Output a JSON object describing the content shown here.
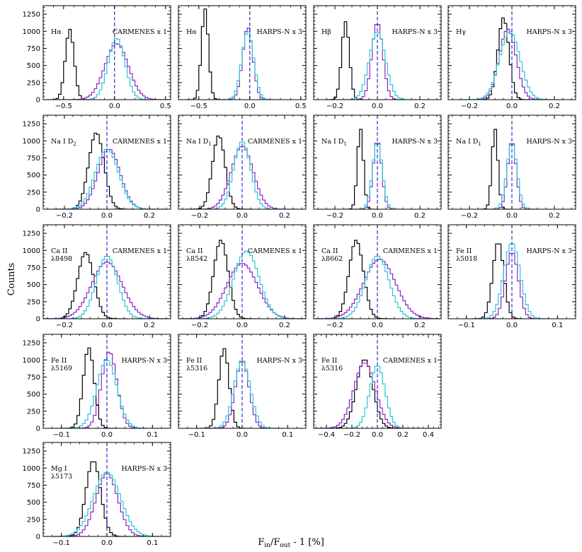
{
  "figure": {
    "ylabel": "Counts",
    "xlabel_main": "F",
    "xlabel_sub_in": "in",
    "xlabel_slash": "/F",
    "xlabel_sub_out": "out",
    "xlabel_tail": " - 1 [%]"
  },
  "colors": {
    "black": "#000000",
    "purple": "#8e24c8",
    "cyan": "#29c8d0",
    "center": "#0000cc"
  },
  "chart_data": [
    {
      "type": "histogram",
      "label": "Hα",
      "instrument": "CARMENES x 1",
      "xlim": [
        -0.7,
        0.55
      ],
      "ylim": [
        0,
        1375
      ],
      "xticks": [
        -0.5,
        0,
        0.5
      ],
      "xticklabels": [
        "−0.5",
        "0.0",
        "0.5"
      ],
      "yticks": [
        0,
        250,
        500,
        750,
        1000,
        1250
      ],
      "bin_width": 0.025,
      "series": [
        {
          "color": "black",
          "mean": -0.44,
          "sigma": 0.043,
          "peak": 1030
        },
        {
          "color": "purple",
          "mean": 0.02,
          "sigma": 0.115,
          "peak": 820
        },
        {
          "color": "cyan",
          "mean": 0.02,
          "sigma": 0.082,
          "peak": 900
        }
      ],
      "center_line": 0.0
    },
    {
      "type": "histogram",
      "label": "Hα",
      "instrument": "HARPS-N x 3",
      "xlim": [
        -0.7,
        0.55
      ],
      "ylim": [
        0,
        1375
      ],
      "xticks": [
        -0.5,
        0,
        0.5
      ],
      "xticklabels": [
        "−0.5",
        "0.0",
        "0.5"
      ],
      "yticks": [
        0,
        250,
        500,
        750,
        1000,
        1250
      ],
      "bin_width": 0.025,
      "series": [
        {
          "color": "black",
          "mean": -0.44,
          "sigma": 0.034,
          "peak": 1330
        },
        {
          "color": "purple",
          "mean": -0.02,
          "sigma": 0.05,
          "peak": 1060
        },
        {
          "color": "cyan",
          "mean": -0.02,
          "sigma": 0.058,
          "peak": 1000
        }
      ],
      "center_line": 0.0
    },
    {
      "type": "histogram",
      "label": "Hβ",
      "instrument": "HARPS-N x 3",
      "xlim": [
        -0.3,
        0.3
      ],
      "ylim": [
        0,
        1375
      ],
      "xticks": [
        -0.2,
        0,
        0.2
      ],
      "xticklabels": [
        "−0.2",
        "0.0",
        "0.2"
      ],
      "yticks": [
        0,
        250,
        500,
        750,
        1000,
        1250
      ],
      "bin_width": 0.012,
      "series": [
        {
          "color": "black",
          "mean": -0.15,
          "sigma": 0.018,
          "peak": 1140
        },
        {
          "color": "purple",
          "mean": 0.0,
          "sigma": 0.026,
          "peak": 1130
        },
        {
          "color": "cyan",
          "mean": 0.0,
          "sigma": 0.038,
          "peak": 990
        }
      ],
      "center_line": 0.0
    },
    {
      "type": "histogram",
      "label": "Hγ",
      "instrument": "HARPS-N x 3",
      "xlim": [
        -0.3,
        0.3
      ],
      "ylim": [
        0,
        1375
      ],
      "xticks": [
        -0.2,
        0,
        0.2
      ],
      "xticklabels": [
        "−0.2",
        "0.0",
        "0.2"
      ],
      "yticks": [
        0,
        250,
        500,
        750,
        1000,
        1250
      ],
      "bin_width": 0.012,
      "series": [
        {
          "color": "black",
          "mean": -0.04,
          "sigma": 0.026,
          "peak": 1200
        },
        {
          "color": "purple",
          "mean": -0.02,
          "sigma": 0.04,
          "peak": 1030
        },
        {
          "color": "cyan",
          "mean": -0.01,
          "sigma": 0.048,
          "peak": 1000
        }
      ],
      "center_line": 0.0
    },
    {
      "type": "histogram",
      "label": "Na I D",
      "label_sub": "2",
      "instrument": "CARMENES x 1",
      "xlim": [
        -0.3,
        0.3
      ],
      "ylim": [
        0,
        1375
      ],
      "xticks": [
        -0.2,
        0,
        0.2
      ],
      "xticklabels": [
        "−0.2",
        "0.0",
        "0.2"
      ],
      "yticks": [
        0,
        250,
        500,
        750,
        1000,
        1250
      ],
      "bin_width": 0.012,
      "series": [
        {
          "color": "black",
          "mean": -0.05,
          "sigma": 0.036,
          "peak": 1120
        },
        {
          "color": "purple",
          "mean": 0.01,
          "sigma": 0.052,
          "peak": 880
        },
        {
          "color": "cyan",
          "mean": 0.0,
          "sigma": 0.055,
          "peak": 880
        }
      ],
      "center_line": 0.0
    },
    {
      "type": "histogram",
      "label": "Na I D",
      "label_sub": "1",
      "instrument": "CARMENES x 1",
      "xlim": [
        -0.3,
        0.3
      ],
      "ylim": [
        0,
        1375
      ],
      "xticks": [
        -0.2,
        0,
        0.2
      ],
      "xticklabels": [
        "−0.2",
        "0.0",
        "0.2"
      ],
      "yticks": [
        0,
        250,
        500,
        750,
        1000,
        1250
      ],
      "bin_width": 0.012,
      "series": [
        {
          "color": "black",
          "mean": -0.11,
          "sigma": 0.03,
          "peak": 1080
        },
        {
          "color": "purple",
          "mean": 0.0,
          "sigma": 0.052,
          "peak": 920
        },
        {
          "color": "cyan",
          "mean": 0.0,
          "sigma": 0.04,
          "peak": 990
        }
      ],
      "center_line": 0.0
    },
    {
      "type": "histogram",
      "label": "Na I D",
      "label_sub": "1",
      "instrument": "HARPS-N x 3",
      "xlim": [
        -0.3,
        0.3
      ],
      "ylim": [
        0,
        1375
      ],
      "xticks": [
        -0.2,
        0,
        0.2
      ],
      "xticklabels": [
        "−0.2",
        "0.0",
        "0.2"
      ],
      "yticks": [
        0,
        250,
        500,
        750,
        1000,
        1250
      ],
      "bin_width": 0.012,
      "series": [
        {
          "color": "black",
          "mean": -0.08,
          "sigma": 0.014,
          "peak": 1180
        },
        {
          "color": "purple",
          "mean": 0.0,
          "sigma": 0.02,
          "peak": 1010
        },
        {
          "color": "cyan",
          "mean": 0.0,
          "sigma": 0.023,
          "peak": 980
        }
      ],
      "center_line": 0.0
    },
    {
      "type": "histogram",
      "label": "Na I D",
      "label_sub": "1",
      "instrument": "HARPS-N x 3",
      "xlim": [
        -0.3,
        0.3
      ],
      "ylim": [
        0,
        1375
      ],
      "xticks": [
        -0.2,
        0,
        0.2
      ],
      "xticklabels": [
        "−0.2",
        "0.0",
        "0.2"
      ],
      "yticks": [
        0,
        250,
        500,
        750,
        1000,
        1250
      ],
      "bin_width": 0.012,
      "series": [
        {
          "color": "black",
          "mean": -0.08,
          "sigma": 0.014,
          "peak": 1180
        },
        {
          "color": "purple",
          "mean": 0.0,
          "sigma": 0.02,
          "peak": 1000
        },
        {
          "color": "cyan",
          "mean": 0.0,
          "sigma": 0.024,
          "peak": 970
        }
      ],
      "center_line": 0.0
    },
    {
      "type": "histogram",
      "label": "Ca II",
      "label2": "λ8498",
      "instrument": "CARMENES x 1",
      "xlim": [
        -0.3,
        0.3
      ],
      "ylim": [
        0,
        1375
      ],
      "xticks": [
        -0.2,
        0,
        0.2
      ],
      "xticklabels": [
        "−0.2",
        "0.0",
        "0.2"
      ],
      "yticks": [
        0,
        250,
        500,
        750,
        1000,
        1250
      ],
      "bin_width": 0.012,
      "series": [
        {
          "color": "black",
          "mean": -0.1,
          "sigma": 0.038,
          "peak": 970
        },
        {
          "color": "purple",
          "mean": 0.0,
          "sigma": 0.072,
          "peak": 830
        },
        {
          "color": "cyan",
          "mean": 0.0,
          "sigma": 0.05,
          "peak": 920
        }
      ],
      "center_line": 0.0
    },
    {
      "type": "histogram",
      "label": "Ca II",
      "label2": "λ8542",
      "instrument": "CARMENES x 1",
      "xlim": [
        -0.3,
        0.3
      ],
      "ylim": [
        0,
        1375
      ],
      "xticks": [
        -0.2,
        0,
        0.2
      ],
      "xticklabels": [
        "−0.2",
        "0.0",
        "0.2"
      ],
      "yticks": [
        0,
        250,
        500,
        750,
        1000,
        1250
      ],
      "bin_width": 0.012,
      "series": [
        {
          "color": "black",
          "mean": -0.1,
          "sigma": 0.034,
          "peak": 1150
        },
        {
          "color": "purple",
          "mean": 0.0,
          "sigma": 0.072,
          "peak": 810
        },
        {
          "color": "cyan",
          "mean": 0.02,
          "sigma": 0.06,
          "peak": 990
        }
      ],
      "center_line": 0.0
    },
    {
      "type": "histogram",
      "label": "Ca II",
      "label2": "λ8662",
      "instrument": "CARMENES x 1",
      "xlim": [
        -0.3,
        0.3
      ],
      "ylim": [
        0,
        1375
      ],
      "xticks": [
        -0.2,
        0,
        0.2
      ],
      "xticklabels": [
        "−0.2",
        "0.0",
        "0.2"
      ],
      "yticks": [
        0,
        250,
        500,
        750,
        1000,
        1250
      ],
      "bin_width": 0.012,
      "series": [
        {
          "color": "black",
          "mean": -0.1,
          "sigma": 0.034,
          "peak": 1150
        },
        {
          "color": "purple",
          "mean": 0.01,
          "sigma": 0.075,
          "peak": 870
        },
        {
          "color": "cyan",
          "mean": 0.0,
          "sigma": 0.055,
          "peak": 920
        }
      ],
      "center_line": 0.0
    },
    {
      "type": "histogram",
      "label": "Fe II",
      "label2": "λ5018",
      "instrument": "HARPS-N x 3",
      "xlim": [
        -0.14,
        0.14
      ],
      "ylim": [
        0,
        1375
      ],
      "xticks": [
        -0.1,
        0,
        0.1
      ],
      "xticklabels": [
        "−0.1",
        "0.0",
        "0.1"
      ],
      "yticks": [
        0,
        250,
        500,
        750,
        1000,
        1250
      ],
      "bin_width": 0.006,
      "series": [
        {
          "color": "black",
          "mean": -0.03,
          "sigma": 0.012,
          "peak": 1130
        },
        {
          "color": "purple",
          "mean": 0.0,
          "sigma": 0.014,
          "peak": 980
        },
        {
          "color": "cyan",
          "mean": 0.0,
          "sigma": 0.018,
          "peak": 1110
        }
      ],
      "center_line": 0.0
    },
    {
      "type": "histogram",
      "label": "Fe II",
      "label2": "λ5169",
      "instrument": "HARPS-N x 3",
      "xlim": [
        -0.14,
        0.14
      ],
      "ylim": [
        0,
        1375
      ],
      "xticks": [
        -0.1,
        0,
        0.1
      ],
      "xticklabels": [
        "−0.1",
        "0.0",
        "0.1"
      ],
      "yticks": [
        0,
        250,
        500,
        750,
        1000,
        1250
      ],
      "bin_width": 0.006,
      "series": [
        {
          "color": "black",
          "mean": -0.04,
          "sigma": 0.012,
          "peak": 1180
        },
        {
          "color": "purple",
          "mean": 0.005,
          "sigma": 0.017,
          "peak": 1120
        },
        {
          "color": "cyan",
          "mean": 0.0,
          "sigma": 0.022,
          "peak": 1000
        }
      ],
      "center_line": 0.0
    },
    {
      "type": "histogram",
      "label": "Fe II",
      "label2": "λ5316",
      "instrument": "HARPS-N x 3",
      "xlim": [
        -0.14,
        0.14
      ],
      "ylim": [
        0,
        1375
      ],
      "xticks": [
        -0.1,
        0,
        0.1
      ],
      "xticklabels": [
        "−0.1",
        "0.0",
        "0.1"
      ],
      "yticks": [
        0,
        250,
        500,
        750,
        1000,
        1250
      ],
      "bin_width": 0.006,
      "series": [
        {
          "color": "black",
          "mean": -0.04,
          "sigma": 0.011,
          "peak": 1170
        },
        {
          "color": "purple",
          "mean": 0.0,
          "sigma": 0.015,
          "peak": 1000
        },
        {
          "color": "cyan",
          "mean": 0.0,
          "sigma": 0.018,
          "peak": 980
        }
      ],
      "center_line": 0.0
    },
    {
      "type": "histogram",
      "label": "Fe II",
      "label2": "λ5316",
      "instrument": "CARMENES x 1",
      "xlim": [
        -0.5,
        0.5
      ],
      "ylim": [
        0,
        1375
      ],
      "xticks": [
        -0.4,
        -0.2,
        0,
        0.2,
        0.4
      ],
      "xticklabels": [
        "−0.4",
        "−0.2",
        "0.0",
        "0.2",
        "0.4"
      ],
      "yticks": [
        0,
        250,
        500,
        750,
        1000,
        1250
      ],
      "bin_width": 0.02,
      "series": [
        {
          "color": "black",
          "mean": -0.1,
          "sigma": 0.065,
          "peak": 1010
        },
        {
          "color": "purple",
          "mean": -0.1,
          "sigma": 0.085,
          "peak": 960
        },
        {
          "color": "cyan",
          "mean": 0.0,
          "sigma": 0.06,
          "peak": 920
        }
      ],
      "center_line": 0.0
    },
    {
      "type": "histogram",
      "label": "Mg I",
      "label2": "λ5173",
      "instrument": "HARPS-N x 3",
      "xlim": [
        -0.14,
        0.14
      ],
      "ylim": [
        0,
        1375
      ],
      "xticks": [
        -0.1,
        0,
        0.1
      ],
      "xticklabels": [
        "−0.1",
        "0.0",
        "0.1"
      ],
      "yticks": [
        0,
        250,
        500,
        750,
        1000,
        1250
      ],
      "bin_width": 0.006,
      "series": [
        {
          "color": "black",
          "mean": -0.03,
          "sigma": 0.016,
          "peak": 1110
        },
        {
          "color": "purple",
          "mean": 0.0,
          "sigma": 0.024,
          "peak": 920
        },
        {
          "color": "cyan",
          "mean": 0.0,
          "sigma": 0.03,
          "peak": 940
        }
      ],
      "center_line": 0.0
    }
  ]
}
